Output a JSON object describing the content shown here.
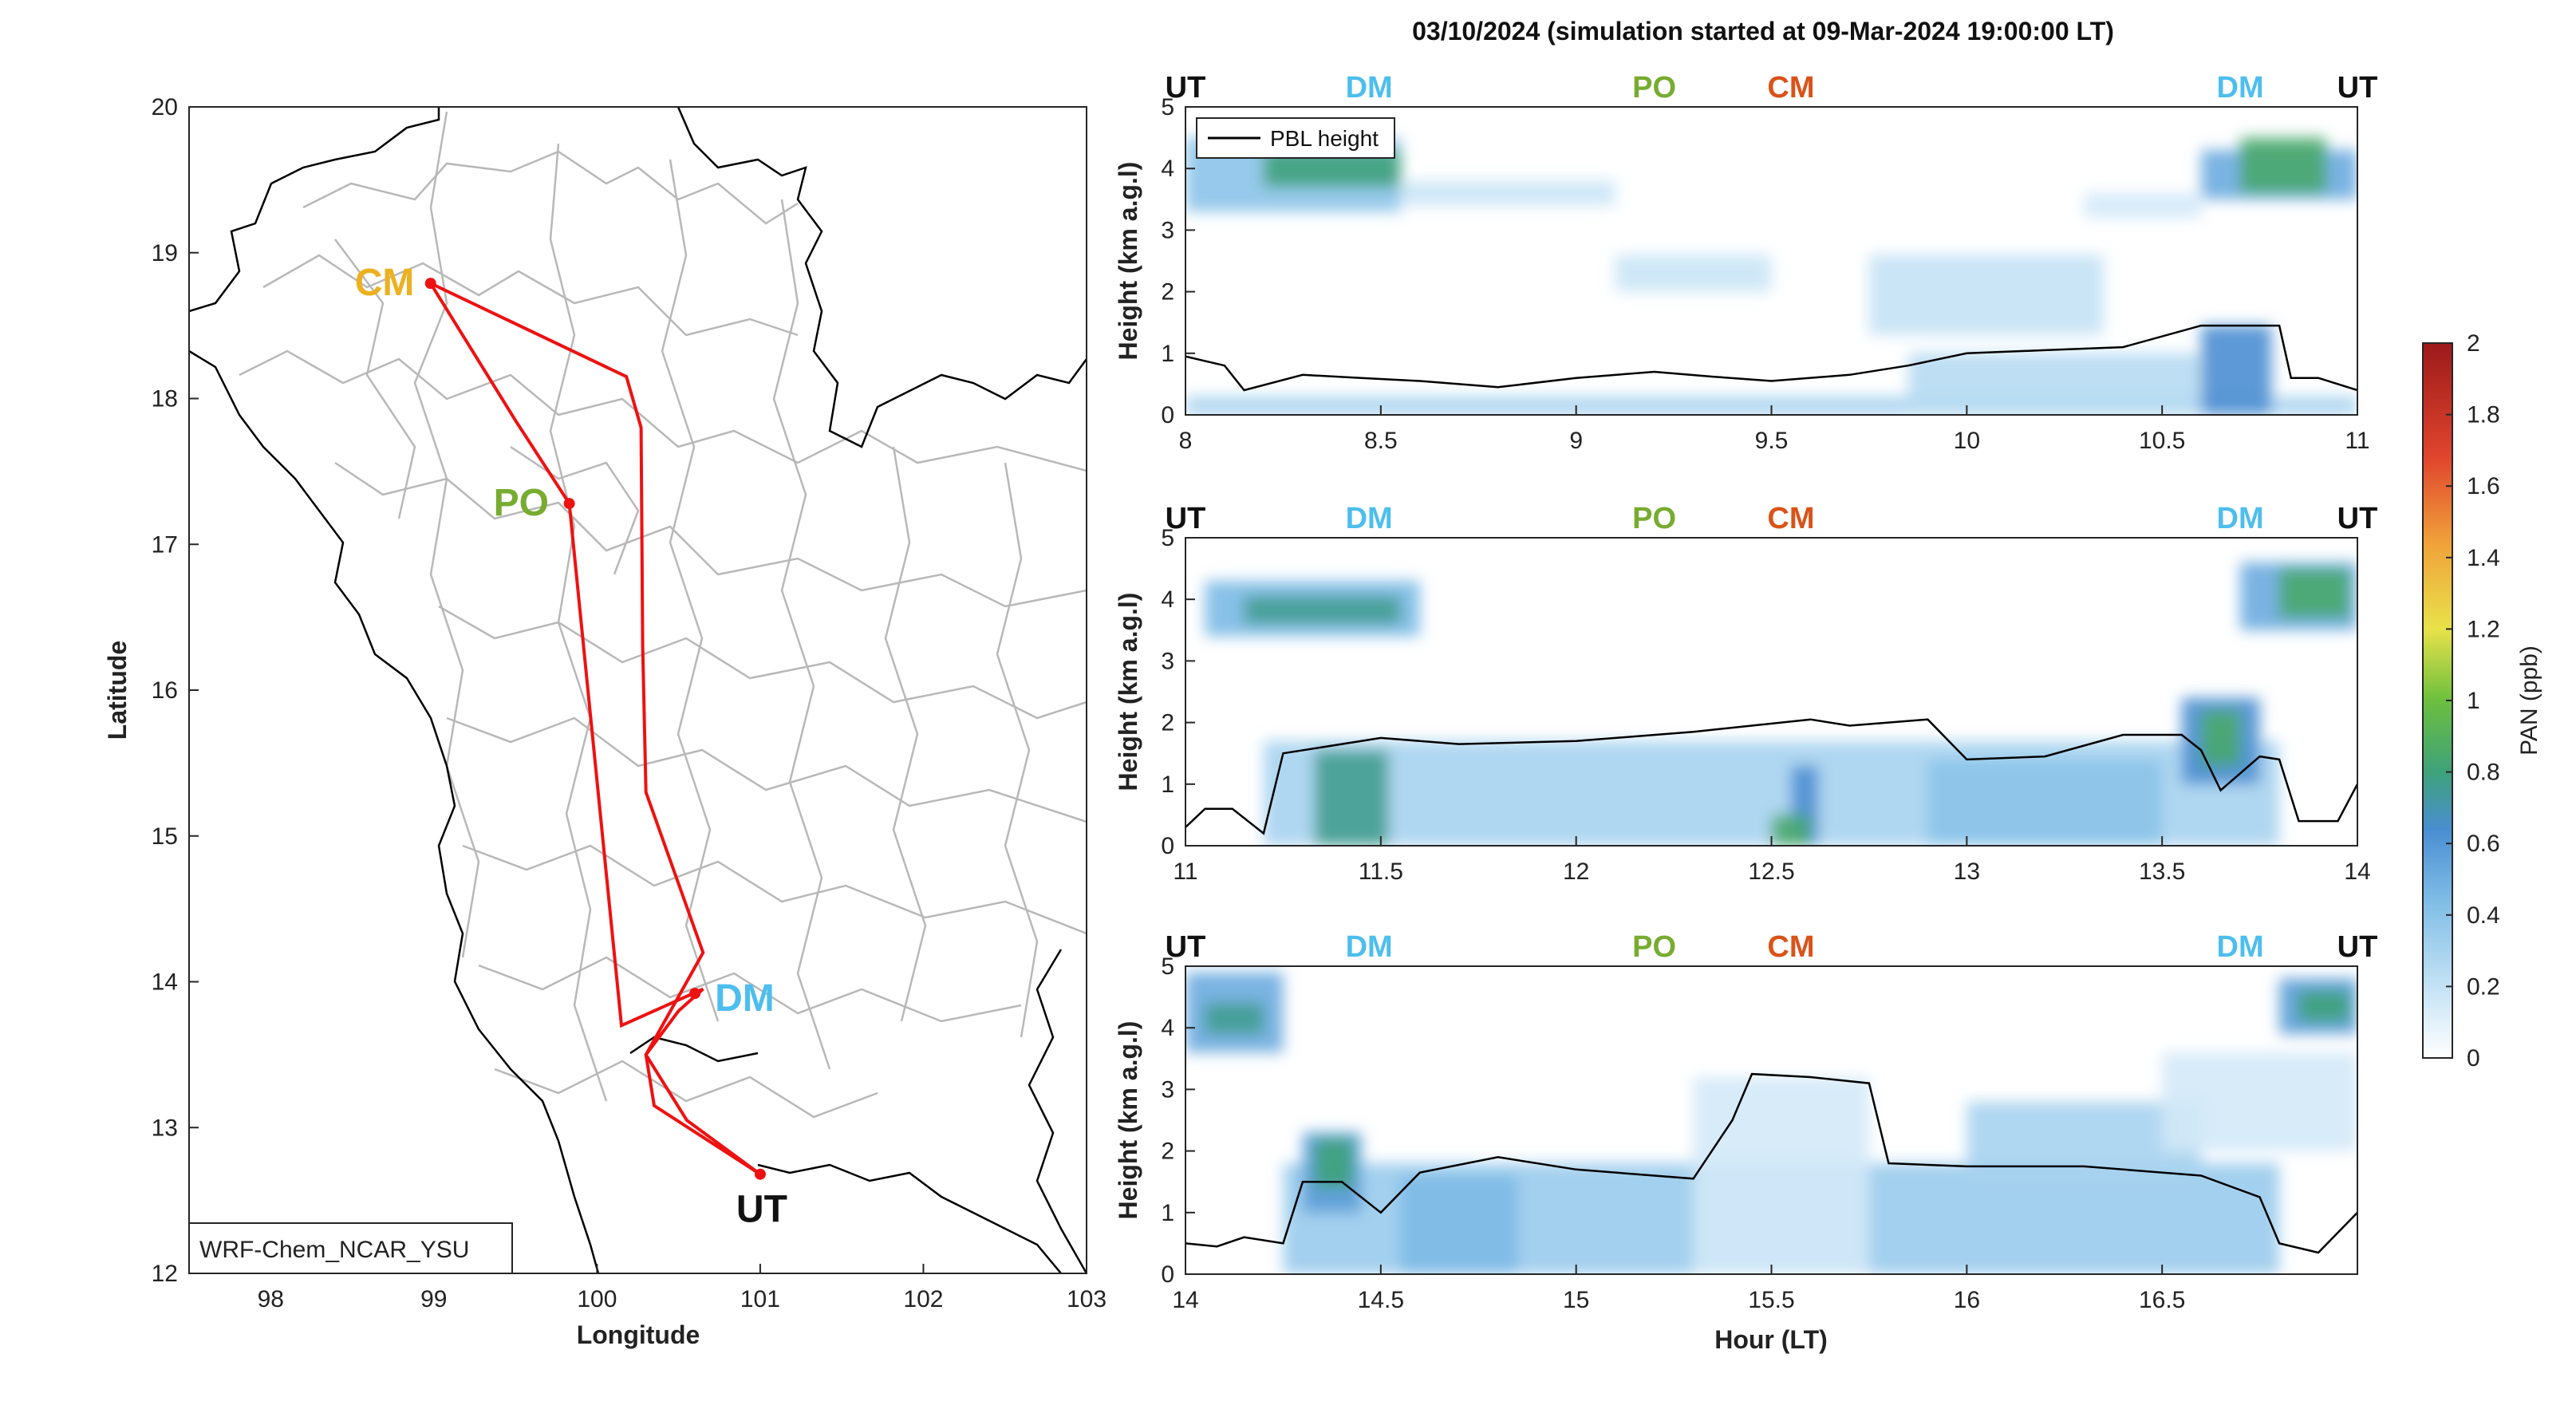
{
  "title": "03/10/2024 (simulation started at 09-Mar-2024 19:00:00 LT)",
  "colors": {
    "UT": "#111111",
    "DM": "#4dbeee",
    "PO": "#77ac30",
    "CM_map": "#edb120",
    "CM_top": "#d95319",
    "route": "#ee1111",
    "province_lines": "#b8b8b8",
    "coast": "#000000"
  },
  "chart_data": [
    {
      "type": "map",
      "xlabel": "Longitude",
      "ylabel": "Latitude",
      "xlim": [
        97.5,
        103
      ],
      "ylim": [
        12,
        20
      ],
      "xticks": [
        "98",
        "99",
        "100",
        "101",
        "102",
        "103"
      ],
      "yticks": [
        "12",
        "13",
        "14",
        "15",
        "16",
        "17",
        "18",
        "19",
        "20"
      ],
      "model_label": "WRF-Chem_NCAR_YSU",
      "locations": [
        {
          "name": "CM",
          "lon": 98.98,
          "lat": 18.79,
          "color": "#edb120"
        },
        {
          "name": "PO",
          "lon": 99.83,
          "lat": 17.28,
          "color": "#77ac30"
        },
        {
          "name": "DM",
          "lon": 100.6,
          "lat": 13.92,
          "color": "#4dbeee"
        },
        {
          "name": "UT",
          "lon": 101.0,
          "lat": 12.68,
          "color": "#111111"
        }
      ],
      "route": [
        [
          101.0,
          12.68
        ],
        [
          100.55,
          13.05
        ],
        [
          100.3,
          13.5
        ],
        [
          100.55,
          14.0
        ],
        [
          100.65,
          14.2
        ],
        [
          100.3,
          15.3
        ],
        [
          100.28,
          16.3
        ],
        [
          100.27,
          17.8
        ],
        [
          100.18,
          18.15
        ],
        [
          98.98,
          18.79
        ],
        [
          99.5,
          17.85
        ],
        [
          99.83,
          17.28
        ],
        [
          100.15,
          13.7
        ],
        [
          100.65,
          13.95
        ],
        [
          100.5,
          13.8
        ],
        [
          100.3,
          13.5
        ],
        [
          100.35,
          13.15
        ],
        [
          101.0,
          12.68
        ]
      ]
    },
    {
      "type": "heatmap",
      "xlabel": "",
      "ylabel": "Height (km a.g.l)",
      "xlim": [
        8,
        11
      ],
      "ylim": [
        0,
        5
      ],
      "xticks": [
        "8",
        "8.5",
        "9",
        "9.5",
        "10",
        "10.5",
        "11"
      ],
      "yticks": [
        "0",
        "1",
        "2",
        "3",
        "4",
        "5"
      ],
      "location_labels": [
        {
          "name": "UT",
          "hour": 8.0
        },
        {
          "name": "DM",
          "hour": 8.47
        },
        {
          "name": "PO",
          "hour": 9.2
        },
        {
          "name": "CM",
          "hour": 9.55
        },
        {
          "name": "DM",
          "hour": 10.7
        },
        {
          "name": "UT",
          "hour": 11.0
        }
      ],
      "legend": "PBL height",
      "pbl": {
        "hours": [
          8.0,
          8.1,
          8.15,
          8.3,
          8.45,
          8.6,
          8.8,
          9.0,
          9.2,
          9.35,
          9.5,
          9.7,
          9.85,
          10.0,
          10.2,
          10.4,
          10.6,
          10.8,
          10.83,
          10.9,
          11.0
        ],
        "heights": [
          0.95,
          0.8,
          0.4,
          0.65,
          0.6,
          0.55,
          0.45,
          0.6,
          0.7,
          0.62,
          0.55,
          0.65,
          0.8,
          1.0,
          1.05,
          1.1,
          1.45,
          1.45,
          0.6,
          0.6,
          0.4
        ]
      },
      "features": [
        {
          "h0": 8.0,
          "h1": 11.0,
          "z0": 0.0,
          "z1": 0.3,
          "value": 0.3
        },
        {
          "h0": 8.0,
          "h1": 8.55,
          "z0": 3.3,
          "z1": 4.5,
          "value": 0.4
        },
        {
          "h0": 8.2,
          "h1": 8.55,
          "z0": 3.7,
          "z1": 4.3,
          "value": 0.8
        },
        {
          "h0": 8.55,
          "h1": 9.1,
          "z0": 3.4,
          "z1": 3.8,
          "value": 0.18
        },
        {
          "h0": 9.1,
          "h1": 9.5,
          "z0": 2.0,
          "z1": 2.6,
          "value": 0.18
        },
        {
          "h0": 9.75,
          "h1": 10.35,
          "z0": 1.3,
          "z1": 2.6,
          "value": 0.2
        },
        {
          "h0": 10.3,
          "h1": 10.6,
          "z0": 3.2,
          "z1": 3.6,
          "value": 0.15
        },
        {
          "h0": 9.85,
          "h1": 10.6,
          "z0": 0.0,
          "z1": 1.0,
          "value": 0.25
        },
        {
          "h0": 10.6,
          "h1": 10.78,
          "z0": 0.0,
          "z1": 1.45,
          "value": 0.6
        },
        {
          "h0": 10.6,
          "h1": 11.0,
          "z0": 3.5,
          "z1": 4.3,
          "value": 0.5
        },
        {
          "h0": 10.7,
          "h1": 10.92,
          "z0": 3.6,
          "z1": 4.5,
          "value": 0.85
        }
      ]
    },
    {
      "type": "heatmap",
      "xlabel": "",
      "ylabel": "Height (km a.g.l)",
      "xlim": [
        11,
        14
      ],
      "ylim": [
        0,
        5
      ],
      "xticks": [
        "11",
        "11.5",
        "12",
        "12.5",
        "13",
        "13.5",
        "14"
      ],
      "yticks": [
        "0",
        "1",
        "2",
        "3",
        "4",
        "5"
      ],
      "location_labels": [
        {
          "name": "UT",
          "hour": 11.0
        },
        {
          "name": "DM",
          "hour": 11.47
        },
        {
          "name": "PO",
          "hour": 12.2
        },
        {
          "name": "CM",
          "hour": 12.55
        },
        {
          "name": "DM",
          "hour": 13.7
        },
        {
          "name": "UT",
          "hour": 14.0
        }
      ],
      "pbl": {
        "hours": [
          11.0,
          11.05,
          11.12,
          11.2,
          11.25,
          11.35,
          11.5,
          11.7,
          12.0,
          12.3,
          12.6,
          12.7,
          12.9,
          13.0,
          13.2,
          13.4,
          13.55,
          13.6,
          13.65,
          13.75,
          13.8,
          13.85,
          13.95,
          14.0
        ],
        "heights": [
          0.3,
          0.6,
          0.6,
          0.2,
          1.5,
          1.6,
          1.75,
          1.65,
          1.7,
          1.85,
          2.05,
          1.95,
          2.05,
          1.4,
          1.45,
          1.8,
          1.8,
          1.55,
          0.9,
          1.45,
          1.4,
          0.4,
          0.4,
          1.0
        ]
      },
      "features": [
        {
          "h0": 11.2,
          "h1": 13.8,
          "z0": 0.0,
          "z1": 1.7,
          "value": 0.3
        },
        {
          "h0": 11.33,
          "h1": 11.52,
          "z0": 0.0,
          "z1": 1.55,
          "value": 0.75
        },
        {
          "h0": 11.05,
          "h1": 11.6,
          "z0": 3.4,
          "z1": 4.3,
          "value": 0.45
        },
        {
          "h0": 11.15,
          "h1": 11.55,
          "z0": 3.6,
          "z1": 4.05,
          "value": 0.75
        },
        {
          "h0": 12.55,
          "h1": 12.62,
          "z0": 0.0,
          "z1": 1.3,
          "value": 0.6
        },
        {
          "h0": 12.5,
          "h1": 12.6,
          "z0": 0.0,
          "z1": 0.5,
          "value": 0.85
        },
        {
          "h0": 12.9,
          "h1": 13.5,
          "z0": 0.0,
          "z1": 1.4,
          "value": 0.4
        },
        {
          "h0": 13.55,
          "h1": 13.75,
          "z0": 1.0,
          "z1": 2.4,
          "value": 0.6
        },
        {
          "h0": 13.6,
          "h1": 13.7,
          "z0": 1.3,
          "z1": 2.2,
          "value": 0.85
        },
        {
          "h0": 13.7,
          "h1": 14.0,
          "z0": 3.5,
          "z1": 4.6,
          "value": 0.5
        },
        {
          "h0": 13.8,
          "h1": 13.98,
          "z0": 3.7,
          "z1": 4.5,
          "value": 0.85
        }
      ]
    },
    {
      "type": "heatmap",
      "xlabel": "Hour (LT)",
      "ylabel": "Height (km a.g.l)",
      "xlim": [
        14,
        17
      ],
      "ylim": [
        0,
        5
      ],
      "xticks": [
        "14",
        "14.5",
        "15",
        "15.5",
        "16",
        "16.5"
      ],
      "yticks": [
        "0",
        "1",
        "2",
        "3",
        "4",
        "5"
      ],
      "location_labels": [
        {
          "name": "UT",
          "hour": 14.0
        },
        {
          "name": "DM",
          "hour": 14.47
        },
        {
          "name": "PO",
          "hour": 15.2
        },
        {
          "name": "CM",
          "hour": 15.55
        },
        {
          "name": "DM",
          "hour": 16.7
        },
        {
          "name": "UT",
          "hour": 17.0
        }
      ],
      "pbl": {
        "hours": [
          14.0,
          14.08,
          14.15,
          14.25,
          14.3,
          14.4,
          14.5,
          14.6,
          14.8,
          15.0,
          15.2,
          15.3,
          15.4,
          15.45,
          15.6,
          15.75,
          15.8,
          16.0,
          16.3,
          16.6,
          16.75,
          16.8,
          16.9,
          17.0
        ],
        "heights": [
          0.5,
          0.45,
          0.6,
          0.5,
          1.5,
          1.5,
          1.0,
          1.65,
          1.9,
          1.7,
          1.6,
          1.55,
          2.5,
          3.25,
          3.2,
          3.1,
          1.8,
          1.75,
          1.75,
          1.6,
          1.25,
          0.5,
          0.35,
          1.0
        ]
      },
      "features": [
        {
          "h0": 14.25,
          "h1": 16.8,
          "z0": 0.0,
          "z1": 1.8,
          "value": 0.35
        },
        {
          "h0": 14.55,
          "h1": 14.85,
          "z0": 0.0,
          "z1": 1.6,
          "value": 0.45
        },
        {
          "h0": 14.3,
          "h1": 14.45,
          "z0": 1.0,
          "z1": 2.3,
          "value": 0.55
        },
        {
          "h0": 14.33,
          "h1": 14.43,
          "z0": 1.4,
          "z1": 2.2,
          "value": 0.8
        },
        {
          "h0": 14.0,
          "h1": 14.25,
          "z0": 3.6,
          "z1": 4.9,
          "value": 0.5
        },
        {
          "h0": 14.05,
          "h1": 14.2,
          "z0": 3.9,
          "z1": 4.4,
          "value": 0.75
        },
        {
          "h0": 15.3,
          "h1": 15.75,
          "z0": 0.0,
          "z1": 3.2,
          "value": 0.15
        },
        {
          "h0": 16.0,
          "h1": 16.6,
          "z0": 1.5,
          "z1": 2.8,
          "value": 0.3
        },
        {
          "h0": 16.5,
          "h1": 17.0,
          "z0": 2.0,
          "z1": 3.6,
          "value": 0.15
        },
        {
          "h0": 16.8,
          "h1": 17.0,
          "z0": 3.9,
          "z1": 4.8,
          "value": 0.55
        },
        {
          "h0": 16.85,
          "h1": 16.98,
          "z0": 4.1,
          "z1": 4.6,
          "value": 0.8
        }
      ]
    }
  ],
  "colorbar": {
    "label": "PAN (ppb)",
    "range": [
      0,
      2
    ],
    "ticks": [
      "0",
      "0.2",
      "0.4",
      "0.6",
      "0.8",
      "1",
      "1.2",
      "1.4",
      "1.6",
      "1.8",
      "2"
    ]
  }
}
